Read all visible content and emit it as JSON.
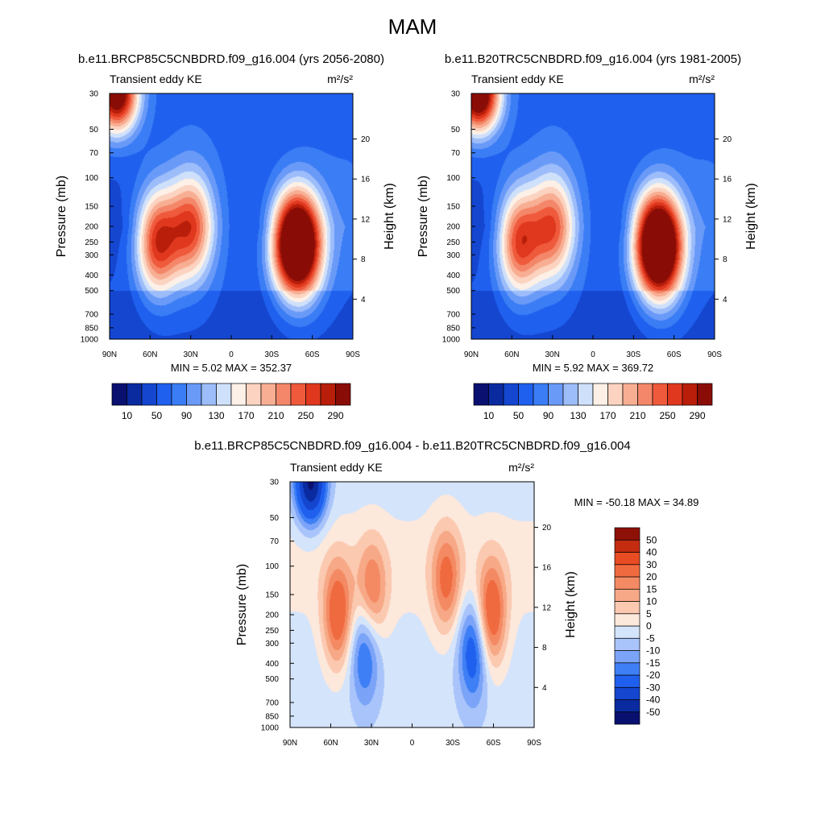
{
  "figure": {
    "title": "MAM"
  },
  "colorbar_abs": {
    "colors": [
      "#0a1070",
      "#0a2aa0",
      "#1446d0",
      "#2060ee",
      "#3a7df5",
      "#6a9af8",
      "#9cbcfa",
      "#cfe0fb",
      "#fdf0e6",
      "#fbd3c0",
      "#f8ae92",
      "#f4876a",
      "#ef5a3c",
      "#e0381e",
      "#b81e0a",
      "#8a0c06"
    ],
    "labels": [
      "10",
      "50",
      "90",
      "130",
      "170",
      "210",
      "250",
      "290"
    ]
  },
  "colorbar_diff": {
    "colors": [
      "#0a1070",
      "#0a2aa0",
      "#1446d0",
      "#2060ee",
      "#3f7ff5",
      "#7ba4f8",
      "#a9c4fa",
      "#d4e4fb",
      "#fde8dc",
      "#fbc9b0",
      "#f7a987",
      "#f48a63",
      "#f06a40",
      "#e84c22",
      "#c42c10",
      "#8e1108"
    ],
    "labels": [
      "-50",
      "-40",
      "-30",
      "-20",
      "-15",
      "-10",
      "-5",
      "0",
      "5",
      "10",
      "15",
      "20",
      "30",
      "40",
      "50"
    ]
  },
  "axes": {
    "pressure_ticks": [
      "30",
      "50",
      "70",
      "100",
      "150",
      "200",
      "250",
      "300",
      "400",
      "500",
      "700",
      "850",
      "1000"
    ],
    "height_ticks": [
      "4",
      "8",
      "12",
      "16",
      "20"
    ],
    "lat_ticks": [
      "90N",
      "60N",
      "30N",
      "0",
      "30S",
      "60S",
      "90S"
    ],
    "ylabel_left": "Pressure (mb)",
    "ylabel_right": "Height (km)"
  },
  "chart_data": [
    {
      "type": "heatmap",
      "title": "b.e11.BRCP85C5CNBDRD.f09_g16.004 (yrs 2056-2080)",
      "subtitle_left": "Transient eddy KE",
      "units": "m²/s²",
      "xlabel": "",
      "ylabel": "Pressure (mb)",
      "ylabel_right": "Height (km)",
      "x_ticks": [
        "90N",
        "60N",
        "30N",
        "0",
        "30S",
        "60S",
        "90S"
      ],
      "y_ticks": [
        "30",
        "50",
        "70",
        "100",
        "150",
        "200",
        "250",
        "300",
        "400",
        "500",
        "700",
        "850",
        "1000"
      ],
      "y2_ticks": [
        "4",
        "8",
        "12",
        "16",
        "20"
      ],
      "stats_text": "MIN =   5.02  MAX = 352.37",
      "min": 5.02,
      "max": 352.37,
      "contour_levels": [
        10,
        30,
        50,
        70,
        90,
        110,
        130,
        150,
        170,
        190,
        210,
        230,
        250,
        270,
        290
      ],
      "features": [
        {
          "lat": -42,
          "p": 250,
          "value": 255
        },
        {
          "lat": -53,
          "p": 260,
          "value": 300
        },
        {
          "lat": 30,
          "p": 200,
          "value": 230
        },
        {
          "lat": 55,
          "p": 250,
          "value": 260
        },
        {
          "lat": 85,
          "p": 30,
          "value": 340
        }
      ]
    },
    {
      "type": "heatmap",
      "title": "b.e11.B20TRC5CNBDRD.f09_g16.004 (yrs 1981-2005)",
      "subtitle_left": "Transient eddy KE",
      "units": "m²/s²",
      "xlabel": "",
      "ylabel": "Pressure (mb)",
      "ylabel_right": "Height (km)",
      "x_ticks": [
        "90N",
        "60N",
        "30N",
        "0",
        "30S",
        "60S",
        "90S"
      ],
      "y_ticks": [
        "30",
        "50",
        "70",
        "100",
        "150",
        "200",
        "250",
        "300",
        "400",
        "500",
        "700",
        "850",
        "1000"
      ],
      "y2_ticks": [
        "4",
        "8",
        "12",
        "16",
        "20"
      ],
      "stats_text": "MIN =   5.92  MAX = 369.72",
      "min": 5.92,
      "max": 369.72,
      "contour_levels": [
        10,
        30,
        50,
        70,
        90,
        110,
        130,
        150,
        170,
        190,
        210,
        230,
        250,
        270,
        290
      ],
      "features": [
        {
          "lat": -42,
          "p": 250,
          "value": 245
        },
        {
          "lat": -52,
          "p": 270,
          "value": 310
        },
        {
          "lat": 30,
          "p": 200,
          "value": 220
        },
        {
          "lat": 55,
          "p": 250,
          "value": 250
        },
        {
          "lat": 85,
          "p": 30,
          "value": 360
        }
      ]
    },
    {
      "type": "heatmap",
      "title": "b.e11.BRCP85C5CNBDRD.f09_g16.004 - b.e11.B20TRC5CNBDRD.f09_g16.004",
      "subtitle_left": "Transient eddy KE",
      "units": "m²/s²",
      "xlabel": "",
      "ylabel": "Pressure (mb)",
      "ylabel_right": "Height (km)",
      "x_ticks": [
        "90N",
        "60N",
        "30N",
        "0",
        "30S",
        "60S",
        "90S"
      ],
      "y_ticks": [
        "30",
        "50",
        "70",
        "100",
        "150",
        "200",
        "250",
        "300",
        "400",
        "500",
        "700",
        "850",
        "1000"
      ],
      "y2_ticks": [
        "4",
        "8",
        "12",
        "16",
        "20"
      ],
      "stats_text": "MIN = -50.18  MAX =  34.89",
      "min": -50.18,
      "max": 34.89,
      "contour_levels": [
        -50,
        -40,
        -30,
        -20,
        -15,
        -10,
        -5,
        0,
        5,
        10,
        15,
        20,
        30,
        40,
        50
      ],
      "features": [
        {
          "lat": 75,
          "p": 30,
          "value": -50
        },
        {
          "lat": 55,
          "p": 200,
          "value": 28
        },
        {
          "lat": 30,
          "p": 150,
          "value": 22
        },
        {
          "lat": -25,
          "p": 120,
          "value": 22
        },
        {
          "lat": -58,
          "p": 200,
          "value": 30
        },
        {
          "lat": 35,
          "p": 330,
          "value": -22
        },
        {
          "lat": -45,
          "p": 330,
          "value": -25
        }
      ]
    }
  ]
}
